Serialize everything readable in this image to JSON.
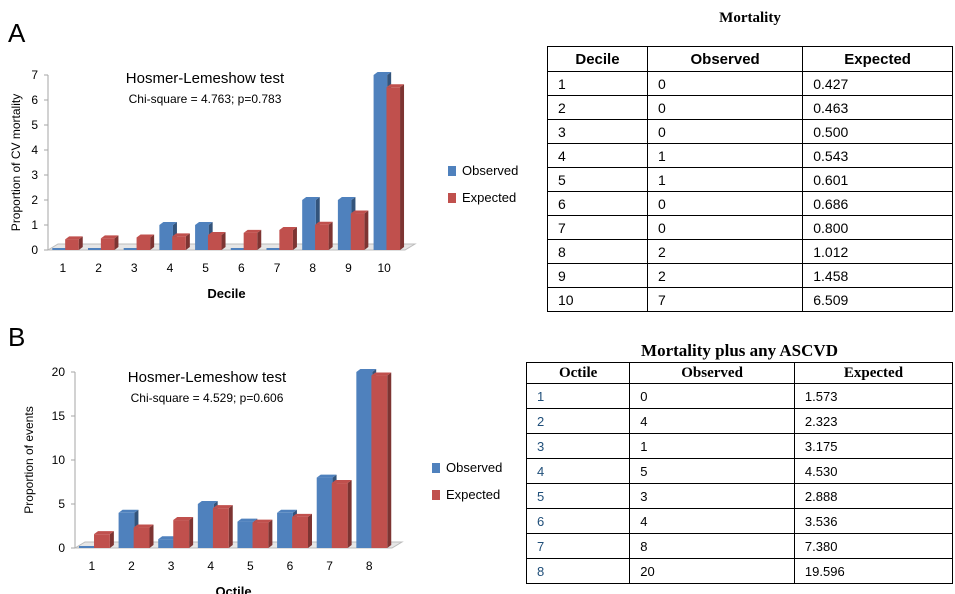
{
  "panels": [
    {
      "letter": "A",
      "chart_data": {
        "type": "bar",
        "annotation_title": "Hosmer-Lemeshow test",
        "annotation_stats": "Chi-square = 4.763; p=0.783",
        "xlabel": "Decile",
        "ylabel": "Proportion of CV mortality",
        "categories": [
          "1",
          "2",
          "3",
          "4",
          "5",
          "6",
          "7",
          "8",
          "9",
          "10"
        ],
        "ylim": [
          0,
          7
        ],
        "yticks": [
          0,
          1,
          2,
          3,
          4,
          5,
          6,
          7
        ],
        "series": [
          {
            "name": "Observed",
            "color": "#4f81bd",
            "values": [
              0,
              0,
              0,
              1,
              1,
              0,
              0,
              2,
              2,
              7
            ]
          },
          {
            "name": "Expected",
            "color": "#c0504d",
            "values": [
              0.427,
              0.463,
              0.5,
              0.543,
              0.601,
              0.686,
              0.8,
              1.012,
              1.458,
              6.509
            ]
          }
        ],
        "legend_position": "right",
        "grid": false
      },
      "table": {
        "title": "Mortality",
        "headers": [
          "Decile",
          "Observed",
          "Expected"
        ],
        "rows": [
          [
            "1",
            "0",
            "0.427"
          ],
          [
            "2",
            "0",
            "0.463"
          ],
          [
            "3",
            "0",
            "0.500"
          ],
          [
            "4",
            "1",
            "0.543"
          ],
          [
            "5",
            "1",
            "0.601"
          ],
          [
            "6",
            "0",
            "0.686"
          ],
          [
            "7",
            "0",
            "0.800"
          ],
          [
            "8",
            "2",
            "1.012"
          ],
          [
            "9",
            "2",
            "1.458"
          ],
          [
            "10",
            "7",
            "6.509"
          ]
        ]
      }
    },
    {
      "letter": "B",
      "chart_data": {
        "type": "bar",
        "annotation_title": "Hosmer-Lemeshow test",
        "annotation_stats": "Chi-square = 4.529; p=0.606",
        "xlabel": "Octile",
        "ylabel": "Proportion of events",
        "categories": [
          "1",
          "2",
          "3",
          "4",
          "5",
          "6",
          "7",
          "8"
        ],
        "ylim": [
          0,
          20
        ],
        "yticks": [
          0,
          5,
          10,
          15,
          20
        ],
        "series": [
          {
            "name": "Observed",
            "color": "#4f81bd",
            "values": [
              0,
              4,
              1,
              5,
              3,
              4,
              8,
              20
            ]
          },
          {
            "name": "Expected",
            "color": "#c0504d",
            "values": [
              1.573,
              2.323,
              3.175,
              4.53,
              2.888,
              3.536,
              7.38,
              19.596
            ]
          }
        ],
        "legend_position": "right",
        "grid": false
      },
      "table": {
        "title": "Mortality plus any ASCVD",
        "headers": [
          "Octile",
          "Observed",
          "Expected"
        ],
        "rows": [
          [
            "1",
            "0",
            "1.573"
          ],
          [
            "2",
            "4",
            "2.323"
          ],
          [
            "3",
            "1",
            "3.175"
          ],
          [
            "4",
            "5",
            "4.530"
          ],
          [
            "5",
            "3",
            "2.888"
          ],
          [
            "6",
            "4",
            "3.536"
          ],
          [
            "7",
            "8",
            "7.380"
          ],
          [
            "8",
            "20",
            "19.596"
          ]
        ]
      }
    }
  ]
}
